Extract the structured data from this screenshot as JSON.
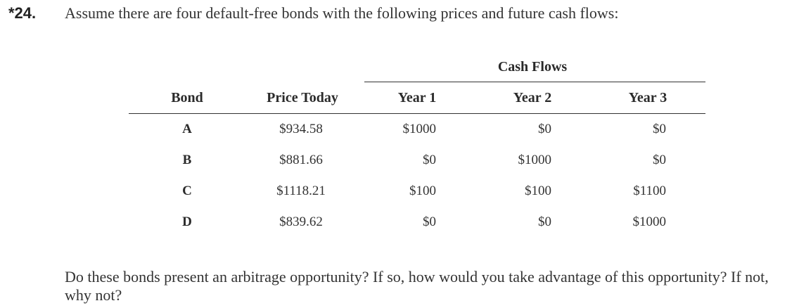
{
  "problem": {
    "number": "*24.",
    "question": "Assume there are four default-free bonds with the following prices and future cash flows:",
    "followup": "Do these bonds present an arbitrage opportunity? If so, how would you take advantage of this opportunity? If not, why not?"
  },
  "table": {
    "group_header": "Cash Flows",
    "headers": [
      "Bond",
      "Price Today",
      "Year 1",
      "Year 2",
      "Year 3"
    ],
    "rows": [
      {
        "bond": "A",
        "price": "$934.58",
        "year1": "$1000",
        "year2": "$0",
        "year3": "$0"
      },
      {
        "bond": "B",
        "price": "$881.66",
        "year1": "$0",
        "year2": "$1000",
        "year3": "$0"
      },
      {
        "bond": "C",
        "price": "$1118.21",
        "year1": "$100",
        "year2": "$100",
        "year3": "$1100"
      },
      {
        "bond": "D",
        "price": "$839.62",
        "year1": "$0",
        "year2": "$0",
        "year3": "$1000"
      }
    ]
  }
}
